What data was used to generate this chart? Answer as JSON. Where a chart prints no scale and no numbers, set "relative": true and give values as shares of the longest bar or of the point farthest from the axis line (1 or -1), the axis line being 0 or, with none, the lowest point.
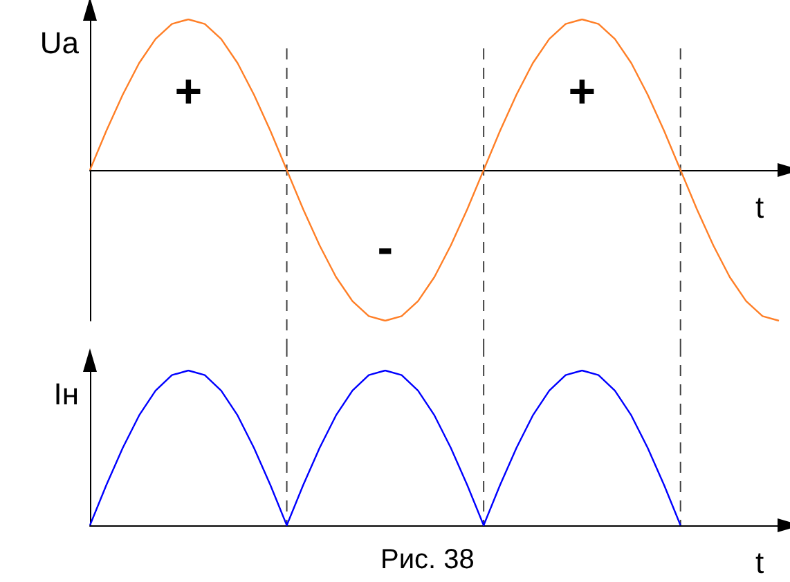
{
  "chart_data": [
    {
      "type": "line",
      "relative": true,
      "ylabel": "Ua",
      "xlabel": "t",
      "categories": [
        null,
        null,
        null,
        null,
        null,
        null,
        null,
        null,
        null,
        null,
        null,
        null,
        null,
        null,
        null,
        null,
        null,
        null,
        null,
        null,
        null,
        null,
        null,
        null,
        null,
        null,
        null,
        null,
        null,
        null,
        null,
        null,
        null,
        null,
        null,
        null,
        null,
        null,
        null,
        null,
        null,
        null,
        null
      ],
      "grid": "x",
      "marker": "none",
      "line_style": "solid",
      "series": [
        {
          "color": "#ff7f27",
          "values": [
            0,
            0.26,
            0.5,
            0.71,
            0.87,
            0.97,
            1,
            0.97,
            0.87,
            0.71,
            0.5,
            0.26,
            0,
            -0.26,
            -0.5,
            -0.71,
            -0.87,
            -0.97,
            -1,
            -0.97,
            -0.87,
            -0.71,
            -0.5,
            -0.26,
            0,
            0.26,
            0.5,
            0.71,
            0.87,
            0.97,
            1,
            0.97,
            0.87,
            0.71,
            0.5,
            0.26,
            0,
            -0.26,
            -0.5,
            -0.71,
            -0.87,
            -0.97,
            -1
          ]
        }
      ],
      "annotations": [
        "+",
        "-",
        "+"
      ]
    },
    {
      "type": "line",
      "relative": true,
      "ylabel": "Iн",
      "xlabel": "t",
      "categories": [
        null,
        null,
        null,
        null,
        null,
        null,
        null,
        null,
        null,
        null,
        null,
        null,
        null,
        null,
        null,
        null,
        null,
        null,
        null,
        null,
        null,
        null,
        null,
        null,
        null,
        null,
        null,
        null,
        null,
        null,
        null,
        null,
        null,
        null,
        null,
        null,
        null,
        null,
        null,
        null,
        null,
        null,
        null
      ],
      "grid": "x",
      "marker": "none",
      "line_style": "solid",
      "series": [
        {
          "color": "#0000ff",
          "values": [
            0,
            0.26,
            0.5,
            0.71,
            0.87,
            0.97,
            1,
            0.97,
            0.87,
            0.71,
            0.5,
            0.26,
            0,
            0.26,
            0.5,
            0.71,
            0.87,
            0.97,
            1,
            0.97,
            0.87,
            0.71,
            0.5,
            0.26,
            0,
            0.26,
            0.5,
            0.71,
            0.87,
            0.97,
            1,
            0.97,
            0.87,
            0.71,
            0.5,
            0.26,
            0,
            null,
            null,
            null,
            null,
            null,
            null
          ]
        }
      ],
      "annotations": [
        "Рис. 38"
      ]
    }
  ]
}
